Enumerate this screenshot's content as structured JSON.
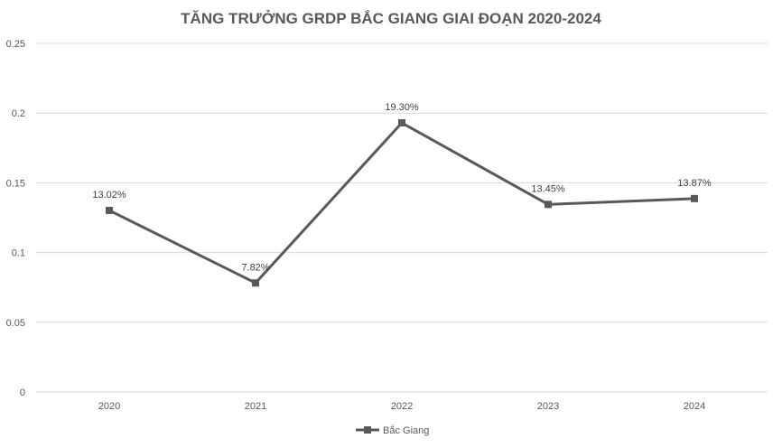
{
  "chart_data": {
    "type": "line",
    "title": "TĂNG TRƯỞNG GRDP BẮC GIANG GIAI ĐOẠN 2020-2024",
    "categories": [
      "2020",
      "2021",
      "2022",
      "2023",
      "2024"
    ],
    "series": [
      {
        "name": "Bắc Giang",
        "values": [
          0.1302,
          0.0782,
          0.193,
          0.1345,
          0.1387
        ],
        "labels": [
          "13.02%",
          "7.82%",
          "19.30%",
          "13.45%",
          "13.87%"
        ],
        "color": "#595959"
      }
    ],
    "y_ticks": [
      "0",
      "0.05",
      "0.1",
      "0.15",
      "0.2",
      "0.25"
    ],
    "ylim": [
      0,
      0.25
    ],
    "grid": true,
    "legend_position": "bottom"
  }
}
